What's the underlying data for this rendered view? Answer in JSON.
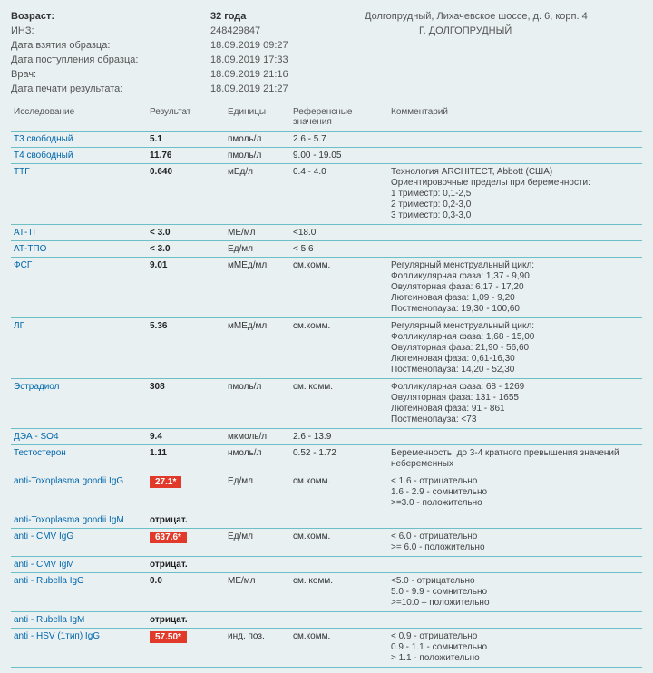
{
  "header": {
    "labels": {
      "age": "Возраст:",
      "inz": "ИНЗ:",
      "sample_date": "Дата взятия образца:",
      "arrival_date": "Дата поступления образца:",
      "doctor": "Врач:",
      "print_date": "Дата печати результата:"
    },
    "values": {
      "age": "32 года",
      "inz": "248429847",
      "sample_date": "18.09.2019 09:27",
      "arrival_date": "18.09.2019 17:33",
      "doctor": "18.09.2019 21:16",
      "print_date": "18.09.2019 21:27"
    },
    "address_line1": "Долгопрудный, Лихачевское шоссе, д. 6, корп. 4",
    "address_line2": "Г. ДОЛГОПРУДНЫЙ"
  },
  "table": {
    "columns": [
      "Исследование",
      "Результат",
      "Единицы",
      "Референсные значения",
      "Комментарий"
    ],
    "rows": [
      {
        "test": "Т3 свободный",
        "result": "5.1",
        "flag": false,
        "unit": "пмоль/л",
        "ref": "2.6 - 5.7",
        "comment": ""
      },
      {
        "test": "Т4 свободный",
        "result": "11.76",
        "flag": false,
        "unit": "пмоль/л",
        "ref": "9.00 - 19.05",
        "comment": ""
      },
      {
        "test": "ТТГ",
        "result": "0.640",
        "flag": false,
        "unit": "мЕд/л",
        "ref": "0.4 - 4.0",
        "comment": "Технология ARCHITECT, Abbott (США)\nОриентировочные пределы при беременности:\n1 триместр: 0,1-2,5\n2 триместр: 0,2-3,0\n3 триместр: 0,3-3,0"
      },
      {
        "test": "АТ-ТГ",
        "result": "< 3.0",
        "flag": false,
        "unit": "МЕ/мл",
        "ref": "<18.0",
        "comment": ""
      },
      {
        "test": "АТ-ТПО",
        "result": "< 3.0",
        "flag": false,
        "unit": "Ед/мл",
        "ref": "< 5.6",
        "comment": ""
      },
      {
        "test": "ФСГ",
        "result": "9.01",
        "flag": false,
        "unit": "мМЕд/мл",
        "ref": "см.комм.",
        "comment": "Регулярный менструальный цикл:\nФолликулярная фаза: 1,37 - 9,90\nОвуляторная фаза: 6,17 - 17,20\nЛютеиновая фаза: 1,09 - 9,20\nПостменопауза: 19,30 - 100,60"
      },
      {
        "test": "ЛГ",
        "result": "5.36",
        "flag": false,
        "unit": "мМЕд/мл",
        "ref": "см.комм.",
        "comment": "Регулярный менструальный цикл:\nФолликулярная фаза: 1,68 - 15,00\nОвуляторная фаза: 21,90 - 56,60\nЛютеиновая фаза: 0,61-16,30\nПостменопауза: 14,20 - 52,30"
      },
      {
        "test": "Эстрадиол",
        "result": "308",
        "flag": false,
        "unit": "пмоль/л",
        "ref": "см. комм.",
        "comment": "Фолликулярная фаза: 68 - 1269\nОвуляторная фаза: 131 - 1655\nЛютеиновая фаза: 91 - 861\nПостменопауза: <73"
      },
      {
        "test": "ДЭА - SO4",
        "result": "9.4",
        "flag": false,
        "unit": "мкмоль/л",
        "ref": "2.6 - 13.9",
        "comment": ""
      },
      {
        "test": "Тестостерон",
        "result": "1.11",
        "flag": false,
        "unit": "нмоль/л",
        "ref": "0.52 - 1.72",
        "comment": "Беременность: до 3-4 кратного превышения значений небеременных"
      },
      {
        "test": "anti-Toxoplasma gondii IgG",
        "result": "27.1*",
        "flag": true,
        "unit": "Ед/мл",
        "ref": "см.комм.",
        "comment": "< 1.6 - отрицательно\n1.6 - 2.9 - сомнительно\n>=3.0 - положительно"
      },
      {
        "test": "anti-Toxoplasma gondii IgM",
        "result": "отрицат.",
        "flag": false,
        "unit": "",
        "ref": "",
        "comment": ""
      },
      {
        "test": "anti - CMV IgG",
        "result": "637.6*",
        "flag": true,
        "unit": "Ед/мл",
        "ref": "см.комм.",
        "comment": "< 6.0 - отрицательно\n>= 6.0 - положительно"
      },
      {
        "test": "anti - CMV IgM",
        "result": "отрицат.",
        "flag": false,
        "unit": "",
        "ref": "",
        "comment": ""
      },
      {
        "test": "anti - Rubella IgG",
        "result": "0.0",
        "flag": false,
        "unit": "МЕ/мл",
        "ref": "см. комм.",
        "comment": "<5.0 - отрицательно\n5.0 - 9.9 - сомнительно\n>=10.0 – положительно"
      },
      {
        "test": "anti - Rubella IgM",
        "result": "отрицат.",
        "flag": false,
        "unit": "",
        "ref": "",
        "comment": ""
      },
      {
        "test": "anti - HSV (1тип) IgG",
        "result": "57.50*",
        "flag": true,
        "unit": "инд. поз.",
        "ref": "см.комм.",
        "comment": "< 0.9 - отрицательно\n0.9 - 1.1 - сомнительно\n> 1.1 - положительно"
      }
    ]
  }
}
